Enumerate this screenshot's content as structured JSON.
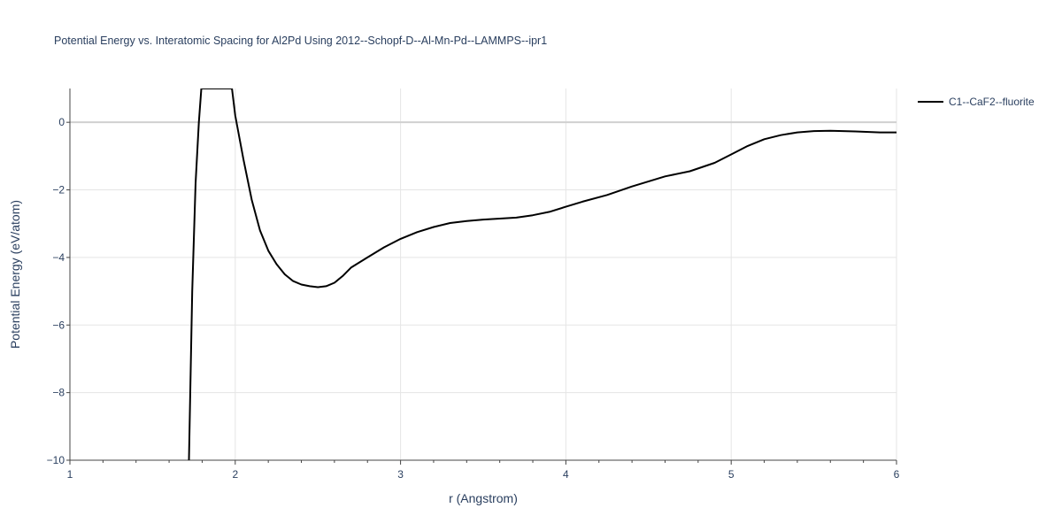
{
  "chart_data": {
    "type": "line",
    "title": "Potential Energy vs. Interatomic Spacing for Al2Pd Using 2012--Schopf-D--Al-Mn-Pd--LAMMPS--ipr1",
    "xlabel": "r (Angstrom)",
    "ylabel": "Potential Energy (eV/atom)",
    "xlim": [
      1,
      6
    ],
    "ylim": [
      -10,
      1
    ],
    "xticks": [
      1,
      2,
      3,
      4,
      5,
      6
    ],
    "yticks": [
      0,
      -2,
      -4,
      -6,
      -8,
      -10
    ],
    "ytick_labels": [
      "0",
      "−2",
      "−4",
      "−6",
      "−8",
      "−10"
    ],
    "grid": true,
    "legend_position": "top-right",
    "series": [
      {
        "name": "C1--CaF2--fluorite",
        "color": "#000000",
        "x": [
          1.72,
          1.74,
          1.76,
          1.78,
          1.795,
          1.98,
          2.0,
          2.05,
          2.1,
          2.15,
          2.2,
          2.25,
          2.3,
          2.35,
          2.4,
          2.45,
          2.5,
          2.55,
          2.6,
          2.65,
          2.7,
          2.8,
          2.9,
          3.0,
          3.1,
          3.2,
          3.3,
          3.4,
          3.5,
          3.6,
          3.7,
          3.8,
          3.9,
          4.0,
          4.1,
          4.25,
          4.4,
          4.6,
          4.75,
          4.9,
          5.0,
          5.1,
          5.2,
          5.3,
          5.4,
          5.5,
          5.6,
          5.75,
          5.9,
          6.0
        ],
        "y": [
          -10.0,
          -5.0,
          -1.8,
          0.0,
          1.0,
          1.0,
          0.2,
          -1.1,
          -2.3,
          -3.2,
          -3.8,
          -4.2,
          -4.5,
          -4.7,
          -4.8,
          -4.85,
          -4.88,
          -4.85,
          -4.75,
          -4.55,
          -4.3,
          -4.0,
          -3.7,
          -3.45,
          -3.25,
          -3.1,
          -2.98,
          -2.92,
          -2.88,
          -2.85,
          -2.82,
          -2.75,
          -2.65,
          -2.5,
          -2.35,
          -2.15,
          -1.9,
          -1.6,
          -1.45,
          -1.2,
          -0.95,
          -0.7,
          -0.5,
          -0.38,
          -0.3,
          -0.26,
          -0.25,
          -0.27,
          -0.3,
          -0.3
        ]
      }
    ]
  }
}
